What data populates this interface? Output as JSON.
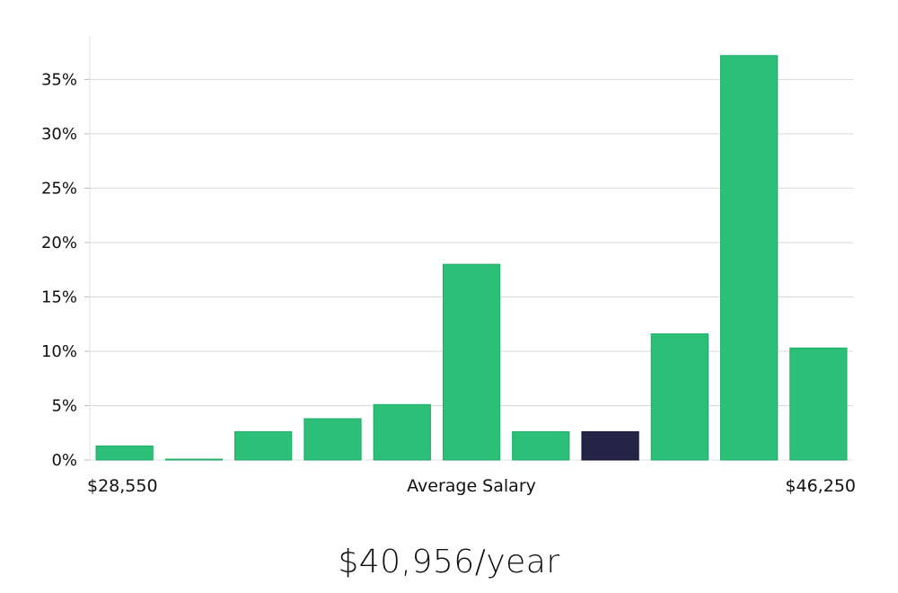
{
  "chart_data": {
    "type": "bar",
    "title": "",
    "xlabel": "Average Salary",
    "ylabel": "",
    "x_min_label": "$28,550",
    "x_max_label": "$46,250",
    "bins": 11,
    "values": [
      1.3,
      0.05,
      2.6,
      3.8,
      5.1,
      18.0,
      2.6,
      2.6,
      11.6,
      37.2,
      10.3
    ],
    "highlight_index": 7,
    "ylim": [
      0,
      39
    ],
    "yticks": [
      0,
      5,
      10,
      15,
      20,
      25,
      30,
      35
    ],
    "ytick_labels": [
      "0%",
      "5%",
      "10%",
      "15%",
      "20%",
      "25%",
      "30%",
      "35%"
    ],
    "grid": true,
    "colors": {
      "bar": "#2BBF78",
      "bar_edge": "#1FAE68",
      "highlight": "#262446",
      "grid": "#D9D9D9",
      "axis": "#E2E2E2"
    }
  },
  "summary": {
    "salary_text": "$40,956/year"
  }
}
